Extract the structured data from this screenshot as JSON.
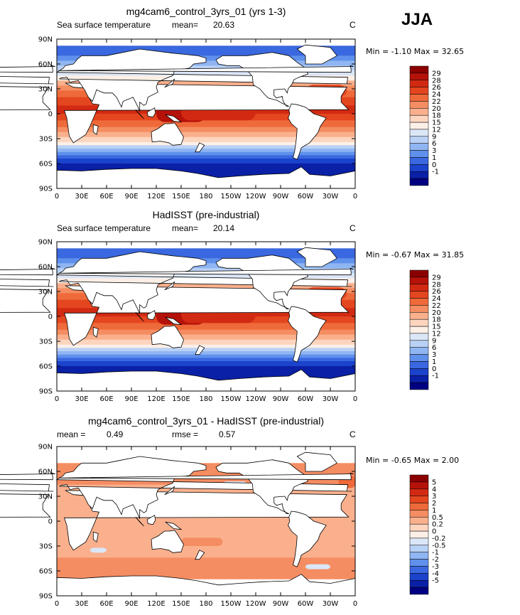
{
  "season": "JJA",
  "panels": [
    {
      "title": "mg4cam6_control_3yrs_01 (yrs 1-3)",
      "left_label": "Sea surface temperature",
      "mean_label": "mean=",
      "mean_value": "20.63",
      "rmse_label": "",
      "rmse_value": "",
      "unit": "C",
      "min_label": "Min =",
      "min_value": "-1.10",
      "max_label": "Max =",
      "max_value": "32.65",
      "colorbar_labels": [
        "29",
        "28",
        "26",
        "24",
        "22",
        "20",
        "18",
        "15",
        "12",
        "9",
        "6",
        "3",
        "1",
        "0",
        "-1"
      ],
      "colorbar_colors": [
        "#8b0000",
        "#b5120a",
        "#d22a12",
        "#e44620",
        "#ef6a3a",
        "#f58d62",
        "#fab08d",
        "#fdd5bf",
        "#fcefe6",
        "#dbe6f7",
        "#b9d1f5",
        "#8fb5f2",
        "#5f90ec",
        "#3a68e0",
        "#1b43cc",
        "#0a20a6",
        "#000080"
      ],
      "type": "sst"
    },
    {
      "title": "HadISST (pre-industrial)",
      "left_label": "Sea surface temperature",
      "mean_label": "mean=",
      "mean_value": "20.14",
      "rmse_label": "",
      "rmse_value": "",
      "unit": "C",
      "min_label": "Min =",
      "min_value": "-0.67",
      "max_label": "Max =",
      "max_value": "31.85",
      "colorbar_labels": [
        "29",
        "28",
        "26",
        "24",
        "22",
        "20",
        "18",
        "15",
        "12",
        "9",
        "6",
        "3",
        "1",
        "0",
        "-1"
      ],
      "colorbar_colors": [
        "#8b0000",
        "#b5120a",
        "#d22a12",
        "#e44620",
        "#ef6a3a",
        "#f58d62",
        "#fab08d",
        "#fdd5bf",
        "#fcefe6",
        "#dbe6f7",
        "#b9d1f5",
        "#8fb5f2",
        "#5f90ec",
        "#3a68e0",
        "#1b43cc",
        "#0a20a6",
        "#000080"
      ],
      "type": "sst"
    },
    {
      "title": "mg4cam6_control_3yrs_01 - HadISST (pre-industrial)",
      "left_label": "",
      "mean_label": "mean =",
      "mean_value": "0.49",
      "rmse_label": "rmse =",
      "rmse_value": "0.57",
      "unit": "C",
      "min_label": "Min =",
      "min_value": "-0.65",
      "max_label": "Max =",
      "max_value": "2.00",
      "colorbar_labels": [
        "5",
        "4",
        "3",
        "2",
        "1",
        "0.5",
        "0.2",
        "0",
        "-0.2",
        "-0.5",
        "-1",
        "-2",
        "-3",
        "-4",
        "-5"
      ],
      "colorbar_colors": [
        "#8b0000",
        "#b5120a",
        "#d22a12",
        "#e44620",
        "#ef6a3a",
        "#f58d62",
        "#fab08d",
        "#fdd5bf",
        "#fcefe6",
        "#dbe6f7",
        "#b9d1f5",
        "#8fb5f2",
        "#5f90ec",
        "#3a68e0",
        "#1b43cc",
        "#0a20a6",
        "#000080"
      ],
      "type": "diff"
    }
  ],
  "lat_labels": [
    "90N",
    "60N",
    "30N",
    "0",
    "30S",
    "60S",
    "90S"
  ],
  "lon_labels": [
    "0",
    "30E",
    "60E",
    "90E",
    "120E",
    "150E",
    "180",
    "150W",
    "120W",
    "90W",
    "60W",
    "30W",
    "0"
  ]
}
